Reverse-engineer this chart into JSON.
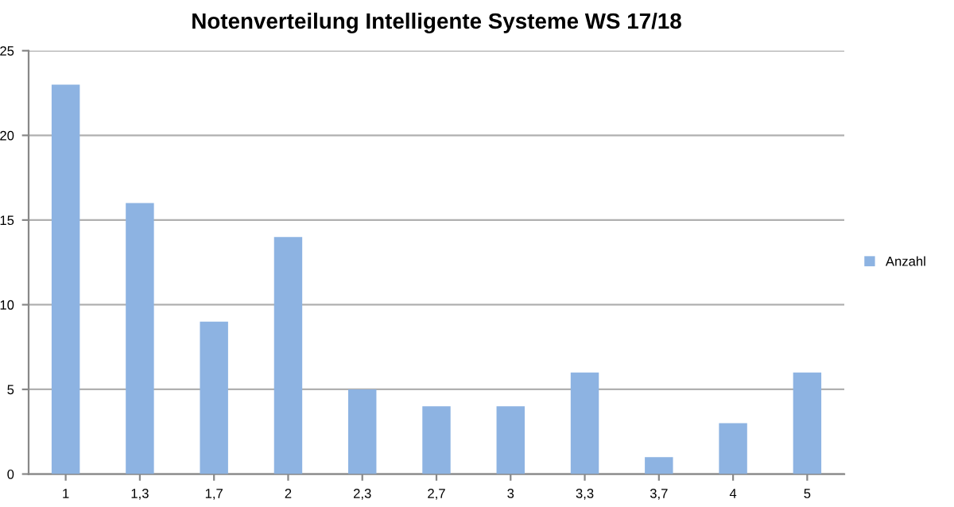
{
  "chart_data": {
    "type": "bar",
    "title": "Notenverteilung Intelligente Systeme WS 17/18",
    "categories": [
      "1",
      "1,3",
      "1,7",
      "2",
      "2,3",
      "2,7",
      "3",
      "3,3",
      "3,7",
      "4",
      "5"
    ],
    "series": [
      {
        "name": "Anzahl",
        "color": "#8db3e2",
        "values": [
          23,
          16,
          9,
          14,
          5,
          4,
          4,
          6,
          1,
          3,
          6
        ]
      }
    ],
    "ylim": [
      0,
      25
    ],
    "yticks": [
      0,
      5,
      10,
      15,
      20,
      25
    ],
    "grid": "y",
    "legend": "right"
  }
}
